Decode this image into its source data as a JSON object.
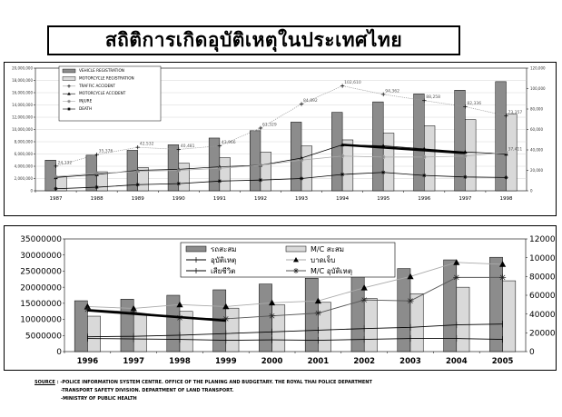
{
  "title": "สถิติการเกิดอุบัติเหตุในประเทศไทย",
  "colors": {
    "bar_dark": "#8c8c8c",
    "bar_light": "#d9d9d9",
    "line_black": "#000000",
    "line_gray": "#aaaaaa"
  },
  "chart_data": [
    {
      "type": "bar",
      "categories": [
        "1987",
        "1988",
        "1989",
        "1990",
        "1991",
        "1992",
        "1993",
        "1994",
        "1995",
        "1996",
        "1997",
        "1998"
      ],
      "y_ticks": [
        "0",
        "2,000,000",
        "4,000,000",
        "6,000,000",
        "8,000,000",
        "10,000,000",
        "12,000,000",
        "14,000,000",
        "16,000,000",
        "18,000,000",
        "20,000,000"
      ],
      "y2_ticks": [
        "0",
        "20,000",
        "40,000",
        "60,000",
        "80,000",
        "100,000",
        "120,000"
      ],
      "ylim": [
        0,
        20000000
      ],
      "y2lim": [
        0,
        120000
      ],
      "legend_position": "top-left",
      "series": [
        {
          "name": "VEHICLE REGISTRATION",
          "kind": "bar",
          "axis": "left",
          "values": [
            5000000,
            5800000,
            6600000,
            7500000,
            8600000,
            9800000,
            11200000,
            12800000,
            14500000,
            15800000,
            16400000,
            17800000
          ]
        },
        {
          "name": "MOTORCYCLE REGISTRATION",
          "kind": "bar",
          "axis": "left",
          "values": [
            2300000,
            3100000,
            3800000,
            4500000,
            5400000,
            6300000,
            7300000,
            8300000,
            9400000,
            10600000,
            11600000,
            12500000
          ]
        },
        {
          "name": "TRAFFIC ACCIDENT",
          "kind": "line",
          "axis": "right",
          "values": [
            24132,
            35376,
            42532,
            40481,
            43966,
            61329,
            84892,
            102610,
            94362,
            88258,
            82336,
            73357
          ],
          "labels": [
            "24,132",
            "35,376",
            "42,532",
            "40,481",
            "43,966",
            "61,329",
            "84,892",
            "102,610",
            "94,362",
            "88,258",
            "82,336",
            "73,357"
          ]
        },
        {
          "name": "MOTORCYCLE ACCIDENT",
          "kind": "line",
          "axis": "right",
          "values": [
            13000,
            16000,
            20000,
            21000,
            23500,
            25000,
            32000,
            45000,
            44000,
            41000,
            38000,
            36000
          ]
        },
        {
          "name": "INJURE",
          "kind": "line",
          "axis": "right",
          "values": [
            14000,
            17000,
            19000,
            20000,
            22000,
            25000,
            30000,
            34000,
            33000,
            33000,
            34000,
            37411
          ],
          "labels": [
            "",
            "",
            "",
            "",
            "",
            "",
            "",
            "",
            "",
            "",
            "",
            "37,411"
          ]
        },
        {
          "name": "DEATH",
          "kind": "line",
          "axis": "right",
          "values": [
            2000,
            3500,
            6000,
            7000,
            9500,
            10500,
            12000,
            16000,
            18000,
            15000,
            13500,
            13000
          ]
        }
      ]
    },
    {
      "type": "bar",
      "categories": [
        "1996",
        "1997",
        "1998",
        "1999",
        "2000",
        "2001",
        "2002",
        "2003",
        "2004",
        "2005"
      ],
      "y_ticks": [
        "0",
        "5000000",
        "10000000",
        "15000000",
        "20000000",
        "25000000",
        "30000000",
        "35000000"
      ],
      "y2_ticks": [
        "0",
        "20000",
        "40000",
        "60000",
        "80000",
        "100000",
        "120000"
      ],
      "ylim": [
        0,
        35000000
      ],
      "y2lim": [
        0,
        120000
      ],
      "legend_position": "top-center",
      "series": [
        {
          "name": "รถสะสม",
          "kind": "bar",
          "axis": "left",
          "values": [
            15800000,
            16300000,
            17500000,
            19200000,
            21000000,
            22800000,
            24500000,
            25800000,
            28500000,
            29300000
          ]
        },
        {
          "name": "M/C สะสม",
          "kind": "bar",
          "axis": "left",
          "values": [
            11000000,
            11500000,
            12500000,
            13500000,
            14500000,
            15300000,
            16500000,
            18000000,
            20000000,
            22000000
          ]
        },
        {
          "name": "อุบัติเหตุ",
          "kind": "line",
          "axis": "right",
          "values": [
            15800,
            16300,
            17500,
            19200,
            21000,
            22800,
            24500,
            25800,
            28500,
            29300
          ]
        },
        {
          "name": "บาดเจ็บ",
          "kind": "line",
          "axis": "right",
          "values": [
            48000,
            46000,
            50000,
            48000,
            52000,
            54000,
            68000,
            80000,
            95000,
            93000
          ]
        },
        {
          "name": "เสียชีวิต",
          "kind": "line",
          "axis": "right",
          "values": [
            14000,
            13500,
            13000,
            12000,
            12500,
            12000,
            13000,
            14000,
            14000,
            13000
          ]
        },
        {
          "name": "M/C อุบัติเหตุ",
          "kind": "line",
          "axis": "right",
          "values": [
            45000,
            42000,
            36000,
            35000,
            38000,
            41000,
            55000,
            54000,
            79000,
            79000
          ]
        }
      ]
    }
  ],
  "source": {
    "label": "SOURCE",
    "line1": ": -POLICE INFORMATION SYSTEM CENTRE. OFFICE OF THE PLANING AND BUDGETARY. THE ROYAL THAI POLICE DEPARTMENT",
    "line2": "-TRANSPORT SAFETY DIVISION. DEPARTMENT OF LAND TRANSPORT.",
    "line3": "-MINISTRY OF PUBLIC HEALTH"
  }
}
